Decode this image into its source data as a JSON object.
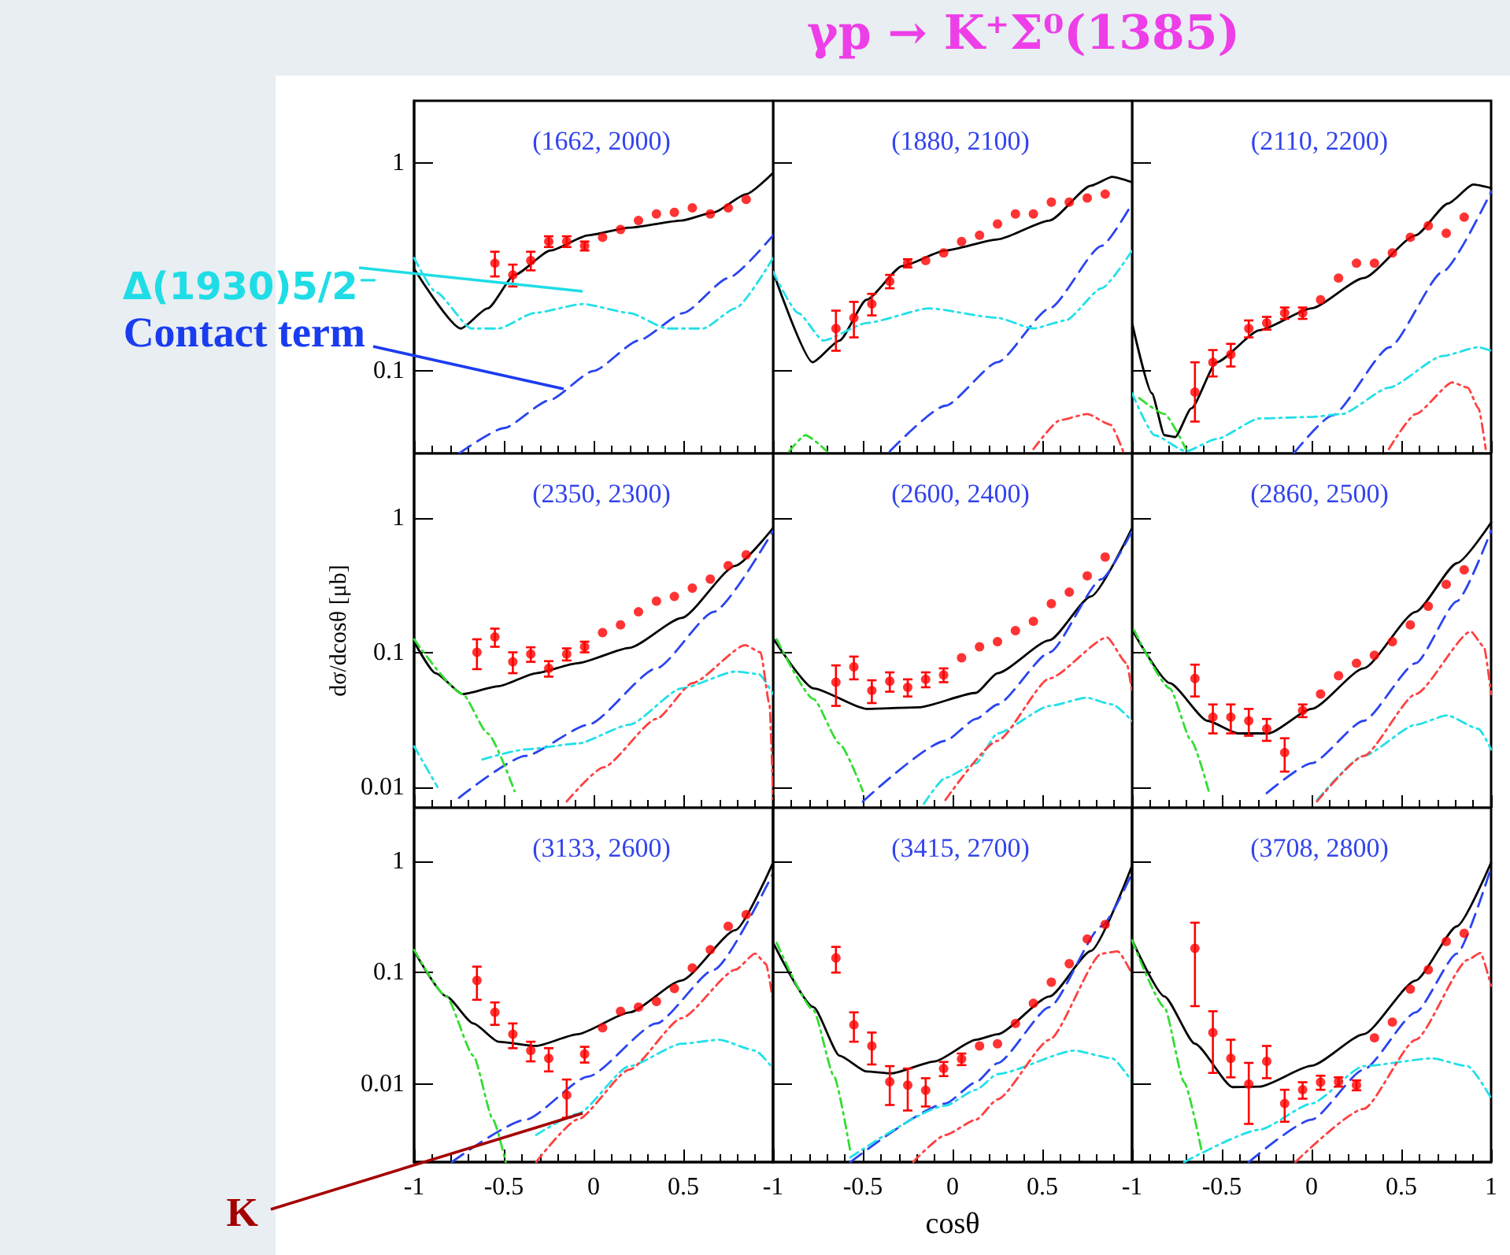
{
  "chart_data": [
    {
      "type": "line",
      "subtitle": "(1662, 2000)",
      "xlim": [
        -1,
        1
      ],
      "xticks": [
        -1,
        -0.5,
        0,
        0.5,
        1
      ],
      "ylim": [
        0.04,
        2
      ],
      "yticks": [
        0.1,
        1
      ],
      "log": "y",
      "tick_labels": "y",
      "grid": false,
      "annotations": [
        "Δ(1930)5/2⁻",
        "Contact term"
      ],
      "series": [
        {
          "type": "scatter",
          "marker": "circle",
          "color": "#ff0000",
          "x": [
            -0.55,
            -0.45,
            -0.35,
            -0.25,
            -0.15,
            -0.05,
            0.05,
            0.15,
            0.25,
            0.35,
            0.45,
            0.55,
            0.65,
            0.75,
            0.85
          ],
          "values": [
            0.33,
            0.29,
            0.34,
            0.42,
            0.42,
            0.4,
            0.44,
            0.48,
            0.53,
            0.57,
            0.58,
            0.61,
            0.57,
            0.61,
            0.67
          ],
          "errors": [
            0.045,
            0.035,
            0.035,
            0.025,
            0.025,
            0.02,
            null,
            null,
            null,
            null,
            null,
            null,
            null,
            null,
            null
          ]
        },
        {
          "type": "line",
          "marker": "none",
          "line_style": "solid",
          "color": "#000000",
          "x": [
            -1,
            -0.74,
            -0.59,
            -0.44,
            -0.24,
            -0.03,
            0.2,
            0.49,
            0.67,
            0.85,
            1
          ],
          "values": [
            0.31,
            0.16,
            0.2,
            0.29,
            0.38,
            0.45,
            0.49,
            0.53,
            0.58,
            0.71,
            0.9
          ]
        },
        {
          "type": "line",
          "marker": "none",
          "line_style": "dashed",
          "color": "#2a44ee",
          "x": [
            -0.75,
            -0.5,
            -0.25,
            0,
            0.25,
            0.5,
            0.75,
            1
          ],
          "values": [
            0.04,
            0.053,
            0.072,
            0.1,
            0.14,
            0.19,
            0.28,
            0.45
          ]
        },
        {
          "type": "line",
          "marker": "none",
          "line_style": "dotted",
          "color": "#22e0e8",
          "x": [
            -1,
            -0.88,
            -0.68,
            -0.53,
            -0.33,
            -0.06,
            0.2,
            0.41,
            0.61,
            0.79,
            1
          ],
          "values": [
            0.35,
            0.24,
            0.16,
            0.16,
            0.19,
            0.21,
            0.19,
            0.16,
            0.16,
            0.2,
            0.35
          ]
        }
      ]
    },
    {
      "type": "line",
      "title": "γp → K⁺Σ⁰(1385)",
      "subtitle": "(1880, 2100)",
      "xlim": [
        -1,
        1
      ],
      "xticks": [
        -1,
        -0.5,
        0,
        0.5,
        1
      ],
      "ylim": [
        0.04,
        2
      ],
      "yticks": [
        0.1,
        1
      ],
      "log": "y",
      "tick_labels": false,
      "grid": false,
      "series": [
        {
          "type": "scatter",
          "marker": "circle",
          "color": "#ff0000",
          "x": [
            -0.65,
            -0.55,
            -0.45,
            -0.35,
            -0.25,
            -0.15,
            -0.05,
            0.05,
            0.15,
            0.25,
            0.35,
            0.45,
            0.55,
            0.65,
            0.75,
            0.85
          ],
          "values": [
            0.16,
            0.18,
            0.21,
            0.27,
            0.33,
            0.34,
            0.37,
            0.42,
            0.45,
            0.51,
            0.57,
            0.57,
            0.65,
            0.65,
            0.68,
            0.71
          ],
          "errors": [
            0.035,
            0.035,
            0.025,
            0.02,
            0.015,
            null,
            null,
            null,
            null,
            null,
            null,
            null,
            null,
            null,
            null,
            null
          ]
        },
        {
          "type": "line",
          "marker": "none",
          "line_style": "solid",
          "color": "#000000",
          "x": [
            -1,
            -0.78,
            -0.63,
            -0.48,
            -0.28,
            -0.04,
            0.25,
            0.54,
            0.77,
            0.89,
            1
          ],
          "values": [
            0.3,
            0.11,
            0.14,
            0.22,
            0.32,
            0.38,
            0.43,
            0.53,
            0.78,
            0.86,
            0.81
          ]
        },
        {
          "type": "line",
          "marker": "none",
          "line_style": "dashed",
          "color": "#2a44ee",
          "x": [
            -0.35,
            -0.04,
            0.25,
            0.54,
            0.83,
            1
          ],
          "values": [
            0.041,
            0.068,
            0.11,
            0.2,
            0.4,
            0.64
          ]
        },
        {
          "type": "line",
          "marker": "none",
          "line_style": "dotted",
          "color": "#22e0e8",
          "x": [
            -1,
            -0.86,
            -0.72,
            -0.48,
            -0.13,
            0.25,
            0.45,
            0.63,
            0.83,
            1
          ],
          "values": [
            0.3,
            0.19,
            0.14,
            0.17,
            0.2,
            0.18,
            0.16,
            0.175,
            0.25,
            0.38
          ]
        },
        {
          "type": "line",
          "marker": "none",
          "line_style": "dotted",
          "color": "#ff4040",
          "x": [
            0.45,
            0.6,
            0.75,
            0.88,
            0.95
          ],
          "values": [
            0.042,
            0.058,
            0.062,
            0.055,
            0.041
          ]
        },
        {
          "type": "line",
          "marker": "none",
          "line_style": "dotted",
          "color": "#33dd33",
          "x": [
            -0.91,
            -0.82,
            -0.7
          ],
          "values": [
            0.041,
            0.049,
            0.041
          ]
        }
      ]
    },
    {
      "type": "line",
      "subtitle": "(2110, 2200)",
      "xlim": [
        -1,
        1
      ],
      "xticks": [
        -1,
        -0.5,
        0,
        0.5,
        1
      ],
      "ylim": [
        0.04,
        2
      ],
      "yticks": [
        0.1,
        1
      ],
      "log": "y",
      "tick_labels": false,
      "grid": false,
      "series": [
        {
          "type": "scatter",
          "marker": "circle",
          "color": "#ff0000",
          "x": [
            -0.65,
            -0.55,
            -0.45,
            -0.35,
            -0.25,
            -0.15,
            -0.05,
            0.05,
            0.15,
            0.25,
            0.35,
            0.45,
            0.55,
            0.65,
            0.75,
            0.85
          ],
          "values": [
            0.079,
            0.11,
            0.12,
            0.16,
            0.17,
            0.19,
            0.19,
            0.22,
            0.28,
            0.33,
            0.33,
            0.37,
            0.44,
            0.5,
            0.46,
            0.55
          ],
          "errors": [
            [
              0.057,
              0.11
            ],
            0.016,
            0.015,
            0.015,
            0.012,
            0.012,
            0.012,
            null,
            null,
            null,
            null,
            null,
            null,
            null,
            null,
            null
          ]
        },
        {
          "type": "line",
          "marker": "none",
          "line_style": "solid",
          "color": "#000000",
          "x": [
            -1,
            -0.89,
            -0.82,
            -0.76,
            -0.67,
            -0.53,
            -0.29,
            0,
            0.29,
            0.58,
            0.76,
            0.9,
            1
          ],
          "values": [
            0.17,
            0.078,
            0.049,
            0.048,
            0.066,
            0.11,
            0.157,
            0.2,
            0.28,
            0.45,
            0.64,
            0.79,
            0.76
          ]
        },
        {
          "type": "line",
          "marker": "none",
          "line_style": "dashed",
          "color": "#2a44ee",
          "x": [
            -0.1,
            0.115,
            0.435,
            0.73,
            1
          ],
          "values": [
            0.04,
            0.061,
            0.13,
            0.3,
            0.73
          ]
        },
        {
          "type": "line",
          "marker": "none",
          "line_style": "dotted",
          "color": "#22e0e8",
          "x": [
            -1,
            -0.875,
            -0.7,
            -0.53,
            -0.29,
            0,
            0.17,
            0.43,
            0.73,
            0.93,
            1
          ],
          "values": [
            0.078,
            0.049,
            0.041,
            0.047,
            0.059,
            0.06,
            0.062,
            0.083,
            0.118,
            0.13,
            0.125
          ]
        },
        {
          "type": "line",
          "marker": "none",
          "line_style": "dotted",
          "color": "#ff4040",
          "x": [
            0.43,
            0.58,
            0.785,
            0.87,
            0.93,
            0.97
          ],
          "values": [
            0.042,
            0.062,
            0.088,
            0.083,
            0.066,
            0.042
          ]
        },
        {
          "type": "line",
          "marker": "none",
          "line_style": "dotted",
          "color": "#33dd33",
          "x": [
            -0.96,
            -0.82,
            -0.7
          ],
          "values": [
            0.074,
            0.062,
            0.042
          ]
        }
      ]
    },
    {
      "type": "line",
      "subtitle": "(2350, 2300)",
      "ylabel": "dσ/dcosθ [μb]",
      "xlim": [
        -1,
        1
      ],
      "xticks": [
        -1,
        -0.5,
        0,
        0.5,
        1
      ],
      "ylim": [
        0.007,
        3
      ],
      "yticks": [
        0.01,
        0.1,
        1
      ],
      "log": "y",
      "tick_labels": "y",
      "grid": false,
      "series": [
        {
          "type": "scatter",
          "marker": "circle",
          "color": "#ff0000",
          "x": [
            -0.65,
            -0.55,
            -0.45,
            -0.35,
            -0.25,
            -0.15,
            -0.05,
            0.05,
            0.15,
            0.25,
            0.35,
            0.45,
            0.55,
            0.65,
            0.75,
            0.85
          ],
          "values": [
            0.1,
            0.13,
            0.085,
            0.097,
            0.076,
            0.097,
            0.11,
            0.14,
            0.16,
            0.2,
            0.24,
            0.26,
            0.3,
            0.35,
            0.44,
            0.53
          ],
          "errors": [
            0.025,
            0.02,
            0.015,
            0.012,
            0.01,
            0.01,
            0.01,
            null,
            null,
            null,
            null,
            null,
            null,
            null,
            null,
            null
          ]
        },
        {
          "type": "line",
          "marker": "none",
          "line_style": "solid",
          "color": "#000000",
          "x": [
            -1,
            -0.88,
            -0.73,
            -0.53,
            -0.32,
            -0.09,
            0.2,
            0.49,
            0.79,
            1
          ],
          "values": [
            0.12,
            0.07,
            0.049,
            0.056,
            0.07,
            0.083,
            0.108,
            0.18,
            0.44,
            0.84
          ]
        },
        {
          "type": "line",
          "marker": "none",
          "line_style": "dashed",
          "color": "#2a44ee",
          "x": [
            -0.75,
            -0.38,
            -0.03,
            0.35,
            0.67,
            1
          ],
          "values": [
            0.0083,
            0.017,
            0.029,
            0.076,
            0.2,
            0.8
          ]
        },
        {
          "type": "line",
          "marker": "none",
          "line_style": "dotted",
          "color": "#22e0e8",
          "x": [
            -1,
            -0.87,
            -0.8,
            -0.62,
            -0.38,
            -0.09,
            0.2,
            0.49,
            0.79,
            0.92,
            1
          ],
          "values": [
            0.02,
            0.01,
            null,
            0.016,
            0.019,
            0.021,
            0.029,
            0.054,
            0.072,
            0.069,
            0.049
          ]
        },
        {
          "type": "line",
          "marker": "none",
          "line_style": "dotted",
          "color": "#ff4040",
          "x": [
            -0.15,
            0.055,
            0.35,
            0.55,
            0.845,
            0.93,
            0.98,
            1
          ],
          "values": [
            0.0078,
            0.014,
            0.032,
            0.059,
            0.113,
            0.1,
            0.041,
            0.0082
          ]
        },
        {
          "type": "line",
          "marker": "none",
          "line_style": "dotted",
          "color": "#33dd33",
          "x": [
            -1,
            -0.73,
            -0.59,
            -0.44
          ],
          "values": [
            0.125,
            0.049,
            0.025,
            0.0093
          ]
        }
      ]
    },
    {
      "type": "line",
      "subtitle": "(2600, 2400)",
      "xlim": [
        -1,
        1
      ],
      "xticks": [
        -1,
        -0.5,
        0,
        0.5,
        1
      ],
      "ylim": [
        0.007,
        3
      ],
      "yticks": [
        0.01,
        0.1,
        1
      ],
      "log": "y",
      "tick_labels": false,
      "grid": false,
      "series": [
        {
          "type": "scatter",
          "marker": "circle",
          "color": "#ff0000",
          "x": [
            -0.65,
            -0.55,
            -0.45,
            -0.35,
            -0.25,
            -0.15,
            -0.05,
            0.05,
            0.15,
            0.25,
            0.35,
            0.45,
            0.55,
            0.65,
            0.75,
            0.85
          ],
          "values": [
            0.06,
            0.078,
            0.052,
            0.061,
            0.055,
            0.063,
            0.068,
            0.091,
            0.11,
            0.12,
            0.145,
            0.17,
            0.23,
            0.28,
            0.37,
            0.51
          ],
          "errors": [
            0.02,
            0.015,
            0.01,
            0.01,
            0.008,
            0.008,
            0.008,
            null,
            null,
            null,
            null,
            null,
            null,
            null,
            null,
            null
          ]
        },
        {
          "type": "line",
          "marker": "none",
          "line_style": "solid",
          "color": "#000000",
          "x": [
            -1,
            -0.775,
            -0.48,
            -0.19,
            0.13,
            0.25,
            0.54,
            0.77,
            1
          ],
          "values": [
            0.127,
            0.054,
            0.038,
            0.039,
            0.05,
            0.07,
            0.123,
            0.26,
            0.84
          ]
        },
        {
          "type": "line",
          "marker": "none",
          "line_style": "dashed",
          "color": "#2a44ee",
          "x": [
            -0.5,
            -0.04,
            0.13,
            0.25,
            0.54,
            0.83,
            1
          ],
          "values": [
            0.0078,
            0.022,
            0.032,
            0.041,
            0.1,
            0.35,
            0.8
          ]
        },
        {
          "type": "line",
          "marker": "none",
          "line_style": "dotted",
          "color": "#22e0e8",
          "x": [
            -0.16,
            -0.04,
            0.13,
            0.25,
            0.54,
            0.745,
            0.89,
            1
          ],
          "values": [
            0.0075,
            0.0117,
            0.015,
            0.025,
            0.04,
            0.046,
            0.041,
            0.031
          ]
        },
        {
          "type": "line",
          "marker": "none",
          "line_style": "dotted",
          "color": "#ff4040",
          "x": [
            -0.04,
            0.25,
            0.54,
            0.86,
            0.97,
            1
          ],
          "values": [
            0.008,
            0.022,
            0.064,
            0.129,
            0.083,
            0.05
          ]
        },
        {
          "type": "line",
          "marker": "none",
          "line_style": "dotted",
          "color": "#33dd33",
          "x": [
            -0.98,
            -0.775,
            -0.63,
            -0.5
          ],
          "values": [
            0.125,
            0.045,
            0.021,
            0.0093
          ]
        }
      ]
    },
    {
      "type": "line",
      "subtitle": "(2860, 2500)",
      "xlim": [
        -1,
        1
      ],
      "xticks": [
        -1,
        -0.5,
        0,
        0.5,
        1
      ],
      "ylim": [
        0.007,
        3
      ],
      "yticks": [
        0.01,
        0.1,
        1
      ],
      "log": "y",
      "tick_labels": false,
      "grid": false,
      "series": [
        {
          "type": "scatter",
          "marker": "circle",
          "color": "#ff0000",
          "x": [
            -0.65,
            -0.55,
            -0.45,
            -0.35,
            -0.25,
            -0.15,
            -0.05,
            0.05,
            0.15,
            0.25,
            0.35,
            0.45,
            0.55,
            0.65,
            0.75,
            0.85
          ],
          "values": [
            0.064,
            0.033,
            0.033,
            0.031,
            0.027,
            0.018,
            0.037,
            0.049,
            0.067,
            0.083,
            0.095,
            0.12,
            0.16,
            0.22,
            0.32,
            0.41
          ],
          "errors": [
            0.017,
            0.008,
            0.008,
            0.007,
            0.005,
            0.005,
            0.004,
            null,
            null,
            null,
            null,
            null,
            null,
            null,
            null,
            null
          ]
        },
        {
          "type": "line",
          "marker": "none",
          "line_style": "solid",
          "color": "#000000",
          "x": [
            -1,
            -0.79,
            -0.58,
            -0.41,
            -0.24,
            0,
            0.29,
            0.58,
            0.81,
            1
          ],
          "values": [
            0.147,
            0.059,
            0.031,
            0.025,
            0.025,
            0.038,
            0.076,
            0.2,
            0.46,
            0.92
          ]
        },
        {
          "type": "line",
          "marker": "none",
          "line_style": "dashed",
          "color": "#2a44ee",
          "x": [
            -0.25,
            0,
            0.29,
            0.58,
            0.81,
            1
          ],
          "values": [
            0.009,
            0.015,
            0.031,
            0.083,
            0.24,
            0.8
          ]
        },
        {
          "type": "line",
          "marker": "none",
          "line_style": "dotted",
          "color": "#22e0e8",
          "x": [
            0.03,
            0.29,
            0.58,
            0.755,
            0.93,
            1
          ],
          "values": [
            0.008,
            0.017,
            0.029,
            0.034,
            0.027,
            0.019
          ]
        },
        {
          "type": "line",
          "marker": "none",
          "line_style": "dotted",
          "color": "#ff4040",
          "x": [
            0.03,
            0.29,
            0.58,
            0.887,
            0.96,
            1
          ],
          "values": [
            0.0078,
            0.017,
            0.049,
            0.143,
            0.11,
            0.049
          ]
        },
        {
          "type": "line",
          "marker": "none",
          "line_style": "dotted",
          "color": "#33dd33",
          "x": [
            -0.99,
            -0.79,
            -0.67,
            -0.57
          ],
          "values": [
            0.147,
            0.054,
            0.022,
            0.009
          ]
        }
      ]
    },
    {
      "type": "line",
      "subtitle": "(3133, 2600)",
      "xlim": [
        -1,
        1
      ],
      "xticks": [
        -1,
        -0.5,
        0,
        0.5
      ],
      "ylim": [
        0.002,
        3
      ],
      "yticks": [
        0.01,
        0.1,
        1
      ],
      "log": "y",
      "grid": false,
      "annotations": [
        "K"
      ],
      "series": [
        {
          "type": "scatter",
          "marker": "circle",
          "color": "#ff0000",
          "x": [
            -0.65,
            -0.55,
            -0.45,
            -0.35,
            -0.25,
            -0.15,
            -0.05,
            0.05,
            0.15,
            0.25,
            0.35,
            0.45,
            0.55,
            0.65,
            0.75,
            0.85
          ],
          "values": [
            0.085,
            0.044,
            0.028,
            0.02,
            0.017,
            0.008,
            0.0186,
            0.032,
            0.045,
            0.049,
            0.055,
            0.072,
            0.11,
            0.16,
            0.26,
            0.33
          ],
          "errors": [
            0.028,
            0.01,
            0.007,
            0.004,
            0.004,
            0.003,
            0.003,
            null,
            null,
            null,
            null,
            null,
            null,
            null,
            null,
            null
          ]
        },
        {
          "type": "line",
          "marker": "none",
          "line_style": "solid",
          "color": "#000000",
          "x": [
            -1,
            -0.82,
            -0.67,
            -0.53,
            -0.32,
            -0.09,
            0.2,
            0.49,
            0.79,
            1
          ],
          "values": [
            0.156,
            0.061,
            0.035,
            0.024,
            0.022,
            0.028,
            0.044,
            0.085,
            0.24,
            0.97
          ]
        },
        {
          "type": "line",
          "marker": "none",
          "line_style": "dashed",
          "color": "#2a44ee",
          "x": [
            -0.79,
            -0.38,
            -0.03,
            0.35,
            0.67,
            1
          ],
          "values": [
            0.002,
            0.0048,
            0.0117,
            0.035,
            0.106,
            0.78
          ]
        },
        {
          "type": "line",
          "marker": "none",
          "line_style": "dotted",
          "color": "#22e0e8",
          "x": [
            -0.32,
            -0.09,
            0.2,
            0.49,
            0.7,
            0.9,
            1
          ],
          "values": [
            0.0035,
            0.0054,
            0.0145,
            0.023,
            0.025,
            0.02,
            0.0138
          ]
        },
        {
          "type": "line",
          "marker": "none",
          "line_style": "dotted",
          "color": "#ff4040",
          "x": [
            -0.32,
            -0.09,
            0.2,
            0.49,
            0.79,
            0.9,
            0.96,
            1
          ],
          "values": [
            0.002,
            0.0048,
            0.0135,
            0.039,
            0.106,
            0.148,
            0.12,
            0.055
          ]
        },
        {
          "type": "line",
          "marker": "none",
          "line_style": "dotted",
          "color": "#33dd33",
          "x": [
            -1,
            -0.82,
            -0.67,
            -0.56,
            -0.49
          ],
          "values": [
            0.16,
            0.061,
            0.018,
            0.0048,
            0.002
          ]
        }
      ]
    },
    {
      "type": "line",
      "subtitle": "(3415, 2700)",
      "xlabel": "cosθ",
      "xlim": [
        -1,
        1
      ],
      "xticks": [
        -1,
        -0.5,
        0,
        0.5
      ],
      "ylim": [
        0.002,
        3
      ],
      "yticks": [
        0.01,
        0.1,
        1
      ],
      "log": "y",
      "tick_labels": "x",
      "grid": false,
      "series": [
        {
          "type": "scatter",
          "marker": "circle",
          "color": "#ff0000",
          "x": [
            -0.65,
            -0.55,
            -0.45,
            -0.35,
            -0.25,
            -0.15,
            -0.05,
            0.05,
            0.15,
            0.25,
            0.35,
            0.45,
            0.55,
            0.65,
            0.75,
            0.85
          ],
          "values": [
            0.135,
            0.034,
            0.022,
            0.0105,
            0.0098,
            0.0088,
            0.0138,
            0.0168,
            0.022,
            0.023,
            0.035,
            0.053,
            0.082,
            0.12,
            0.2,
            0.27
          ],
          "errors": [
            0.035,
            0.01,
            0.007,
            0.004,
            0.004,
            0.0025,
            0.002,
            0.002,
            null,
            null,
            null,
            null,
            null,
            null,
            null,
            null
          ]
        },
        {
          "type": "line",
          "marker": "none",
          "line_style": "solid",
          "color": "#000000",
          "x": [
            -1,
            -0.775,
            -0.63,
            -0.48,
            -0.34,
            -0.1,
            0.13,
            0.25,
            0.54,
            0.77,
            1
          ],
          "values": [
            0.185,
            0.049,
            0.018,
            0.013,
            0.0125,
            0.016,
            0.025,
            0.028,
            0.061,
            0.156,
            0.91
          ]
        },
        {
          "type": "line",
          "marker": "none",
          "line_style": "dashed",
          "color": "#2a44ee",
          "x": [
            -0.57,
            -0.04,
            0.13,
            0.25,
            0.54,
            0.83,
            1
          ],
          "values": [
            0.002,
            0.0067,
            0.0104,
            0.0154,
            0.049,
            0.26,
            0.78
          ]
        },
        {
          "type": "line",
          "marker": "none",
          "line_style": "dotted",
          "color": "#22e0e8",
          "x": [
            -0.57,
            -0.04,
            0.13,
            0.25,
            0.68,
            0.89,
            1
          ],
          "values": [
            0.0022,
            0.0064,
            0.0089,
            0.0123,
            0.02,
            0.017,
            0.0105
          ]
        },
        {
          "type": "line",
          "marker": "none",
          "line_style": "dotted",
          "color": "#ff4040",
          "x": [
            -0.22,
            -0.04,
            0.13,
            0.25,
            0.54,
            0.83,
            0.92,
            1
          ],
          "values": [
            0.002,
            0.0035,
            0.0048,
            0.0073,
            0.025,
            0.148,
            0.155,
            0.097
          ]
        },
        {
          "type": "line",
          "marker": "none",
          "line_style": "dotted",
          "color": "#33dd33",
          "x": [
            -0.98,
            -0.775,
            -0.66,
            -0.57
          ],
          "values": [
            0.185,
            0.046,
            0.0117,
            0.0025
          ]
        }
      ]
    },
    {
      "type": "line",
      "subtitle": "(3708, 2800)",
      "xlim": [
        -1,
        1
      ],
      "xticks": [
        -1,
        -0.5,
        0,
        0.5,
        1
      ],
      "ylim": [
        0.002,
        3
      ],
      "yticks": [
        0.01,
        0.1,
        1
      ],
      "log": "y",
      "tick_labels": "x",
      "grid": false,
      "series": [
        {
          "type": "scatter",
          "marker": "circle",
          "color": "#ff0000",
          "x": [
            -0.65,
            -0.55,
            -0.45,
            -0.35,
            -0.25,
            -0.15,
            -0.05,
            0.05,
            0.15,
            0.25,
            0.35,
            0.45,
            0.55,
            0.65,
            0.75,
            0.85
          ],
          "values": [
            0.165,
            0.029,
            0.017,
            0.01,
            0.016,
            0.0067,
            0.0089,
            0.0104,
            0.0105,
            0.0098,
            0.026,
            0.036,
            0.071,
            0.106,
            0.19,
            0.225
          ],
          "errors": [
            [
              0.05,
              0.28
            ],
            [
              0.0126,
              0.045
            ],
            [
              0.0115,
              0.025
            ],
            [
              0.0044,
              0.0155
            ],
            [
              0.0113,
              0.022
            ],
            [
              0.0046,
              0.0089
            ],
            0.0015,
            0.0015,
            0.001,
            0.001,
            null,
            null,
            null,
            null,
            null,
            null
          ]
        },
        {
          "type": "line",
          "marker": "none",
          "line_style": "solid",
          "color": "#000000",
          "x": [
            -1,
            -0.82,
            -0.65,
            -0.44,
            -0.29,
            0,
            0.29,
            0.58,
            0.81,
            1
          ],
          "values": [
            0.195,
            0.061,
            0.023,
            0.0094,
            0.0095,
            0.0146,
            0.028,
            0.085,
            0.26,
            0.97
          ]
        },
        {
          "type": "line",
          "marker": "none",
          "line_style": "dashed",
          "color": "#2a44ee",
          "x": [
            -0.35,
            0,
            0.29,
            0.58,
            0.81,
            1
          ],
          "values": [
            0.002,
            0.0048,
            0.0135,
            0.044,
            0.148,
            0.87
          ]
        },
        {
          "type": "line",
          "marker": "none",
          "line_style": "dotted",
          "color": "#22e0e8",
          "x": [
            -0.71,
            -0.29,
            0,
            0.29,
            0.67,
            0.87,
            1
          ],
          "values": [
            0.002,
            0.0039,
            0.0067,
            0.0145,
            0.017,
            0.0145,
            0.0075
          ]
        },
        {
          "type": "line",
          "marker": "none",
          "line_style": "dotted",
          "color": "#ff4040",
          "x": [
            -0.09,
            0.29,
            0.58,
            0.87,
            0.94,
            1
          ],
          "values": [
            0.002,
            0.006,
            0.025,
            0.13,
            0.15,
            0.076
          ]
        },
        {
          "type": "line",
          "marker": "none",
          "line_style": "dotted",
          "color": "#33dd33",
          "x": [
            -1,
            -0.82,
            -0.71,
            -0.61
          ],
          "values": [
            0.195,
            0.049,
            0.0104,
            0.0024
          ]
        }
      ]
    }
  ]
}
